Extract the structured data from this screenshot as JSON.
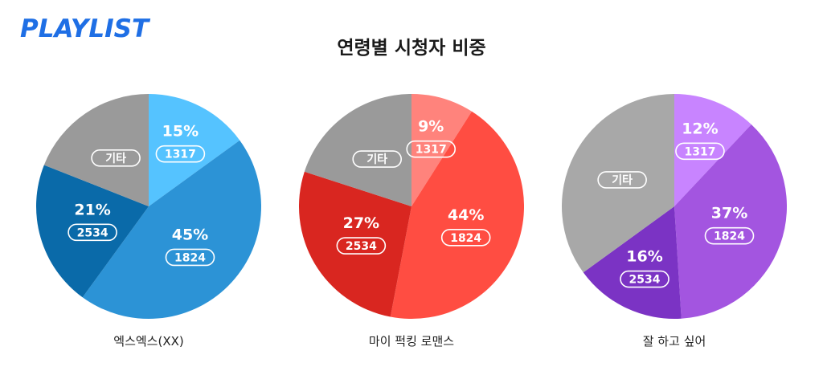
{
  "brand": {
    "logo_text": "PLAYLIST",
    "color": "#1f6fe5"
  },
  "title": "연령별 시청자 비중",
  "chart_data": [
    {
      "type": "pie",
      "name": "엑스엑스(XX)",
      "slices": [
        {
          "label": "1317",
          "value": 15,
          "color": "#55c3ff"
        },
        {
          "label": "1824",
          "value": 45,
          "color": "#2c93d6"
        },
        {
          "label": "2534",
          "value": 21,
          "color": "#0a6aa9"
        },
        {
          "label": "기타",
          "value": 19,
          "color": "#9a9a9a"
        }
      ]
    },
    {
      "type": "pie",
      "name": "마이 퍽킹 로맨스",
      "slices": [
        {
          "label": "1317",
          "value": 9,
          "color": "#ff837c"
        },
        {
          "label": "1824",
          "value": 44,
          "color": "#ff4d42"
        },
        {
          "label": "2534",
          "value": 27,
          "color": "#d92620"
        },
        {
          "label": "기타",
          "value": 20,
          "color": "#9a9a9a"
        }
      ]
    },
    {
      "type": "pie",
      "name": "잘 하고 싶어",
      "slices": [
        {
          "label": "1317",
          "value": 12,
          "color": "#c884ff"
        },
        {
          "label": "1824",
          "value": 37,
          "color": "#a355e0"
        },
        {
          "label": "2534",
          "value": 16,
          "color": "#7b33c4"
        },
        {
          "label": "기타",
          "value": 35,
          "color": "#a8a8a8"
        }
      ]
    }
  ]
}
